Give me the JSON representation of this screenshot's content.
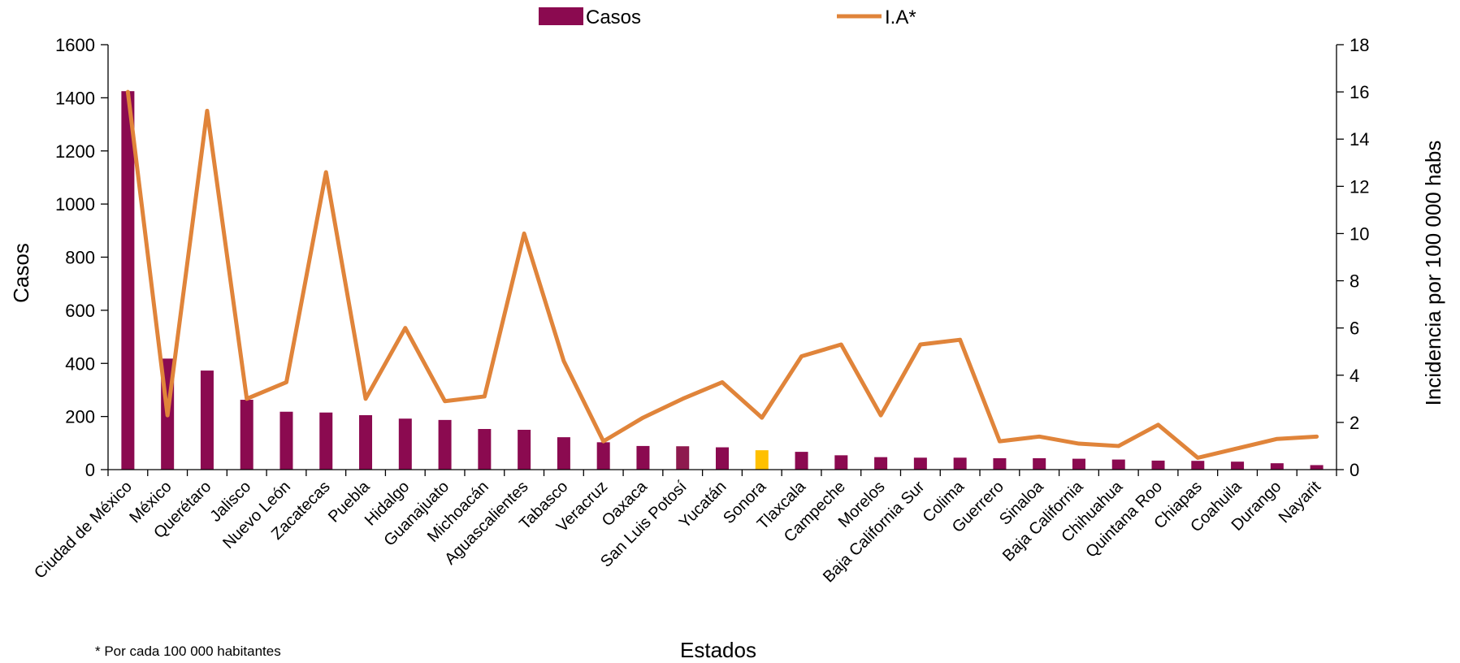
{
  "chart_data": {
    "type": "bar",
    "xlabel": "Estados",
    "ylabel": "Casos",
    "y2label": "Incidencia por 100 000 habs",
    "ylim": [
      0,
      1600
    ],
    "yticks": [
      0,
      200,
      400,
      600,
      800,
      1000,
      1200,
      1400,
      1600
    ],
    "y2lim": [
      0,
      18
    ],
    "y2ticks": [
      0,
      2,
      4,
      6,
      8,
      10,
      12,
      14,
      16,
      18
    ],
    "grid": false,
    "legend_position": "top-center",
    "footnote": "* Por cada 100 000 habitantes",
    "colors": {
      "bar": "#8B0A50",
      "bar_highlight_slp": "#8E1A4E",
      "bar_highlight": "#FFC000",
      "line": "#E0843A"
    },
    "categories": [
      "Ciudad de México",
      "México",
      "Querétaro",
      "Jalisco",
      "Nuevo León",
      "Zacatecas",
      "Puebla",
      "Hidalgo",
      "Guanajuato",
      "Michoacán",
      "Aguascalientes",
      "Tabasco",
      "Veracruz",
      "Oaxaca",
      "San Luis Potosí",
      "Yucatán",
      "Sonora",
      "Tlaxcala",
      "Campeche",
      "Morelos",
      "Baja California Sur",
      "Colima",
      "Guerrero",
      "Sinaloa",
      "Baja California",
      "Chihuahua",
      "Quintana Roo",
      "Chiapas",
      "Coahuila",
      "Durango",
      "Nayarit"
    ],
    "series": [
      {
        "name": "Casos",
        "type": "bar",
        "axis": "left",
        "values": [
          1425,
          418,
          373,
          263,
          218,
          215,
          205,
          192,
          187,
          153,
          150,
          122,
          103,
          89,
          88,
          84,
          73,
          67,
          54,
          47,
          45,
          45,
          43,
          43,
          41,
          38,
          34,
          33,
          30,
          24,
          17
        ],
        "highlight_index": 16
      },
      {
        "name": "I.A*",
        "type": "line",
        "axis": "right",
        "values": [
          16.0,
          2.3,
          15.2,
          3.0,
          3.7,
          12.6,
          3.0,
          6.0,
          2.9,
          3.1,
          10.0,
          4.6,
          1.2,
          2.2,
          3.0,
          3.7,
          2.2,
          4.8,
          5.3,
          2.3,
          5.3,
          5.5,
          1.2,
          1.4,
          1.1,
          1.0,
          1.9,
          0.5,
          0.9,
          1.3,
          1.4
        ]
      }
    ]
  }
}
